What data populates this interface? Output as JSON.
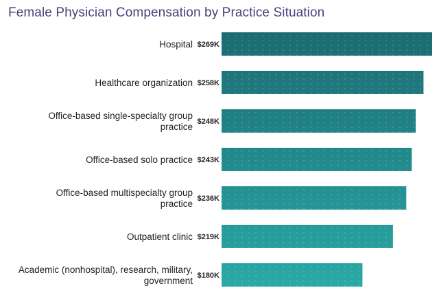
{
  "chart_data": {
    "type": "bar",
    "orientation": "horizontal",
    "title": "Female Physician Compensation by Practice Situation",
    "categories": [
      [
        "Hospital"
      ],
      [
        "Healthcare organization"
      ],
      [
        "Office-based single-specialty group",
        "practice"
      ],
      [
        "Office-based solo practice"
      ],
      [
        "Office-based multispecialty group",
        "practice"
      ],
      [
        "Outpatient clinic"
      ],
      [
        "Academic (nonhospital), research, military,",
        "government"
      ]
    ],
    "values": [
      269,
      258,
      248,
      243,
      236,
      219,
      180
    ],
    "value_labels": [
      "$269K",
      "$258K",
      "$248K",
      "$243K",
      "$236K",
      "$219K",
      "$180K"
    ],
    "unit": "$K",
    "xlim": [
      0,
      269
    ],
    "xlabel": "",
    "ylabel": "",
    "grid": false,
    "legend": "none",
    "colors": {
      "bar_start": "#1b6b72",
      "bar_end": "#2aa9a6",
      "title": "#4a3f7a",
      "text": "#222222"
    }
  }
}
